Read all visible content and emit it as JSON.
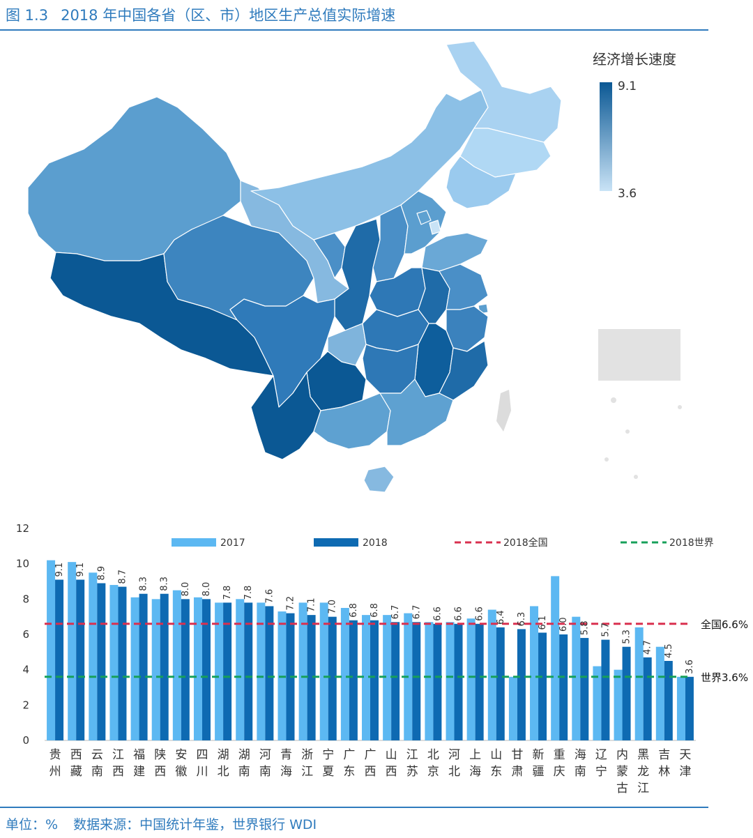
{
  "figure": {
    "number": "图 1.3",
    "title": "2018 年中国各省（区、市）地区生产总值实际增速"
  },
  "footer": {
    "unit": "单位：%",
    "source": "数据来源：中国统计年鉴，世界银行 WDI"
  },
  "map_legend": {
    "title": "经济增长速度",
    "max_label": "9.1",
    "min_label": "3.6",
    "color_high": "#0b5894",
    "color_low": "#c9e3f6"
  },
  "chart_data": {
    "type": "bar",
    "ylim": [
      0,
      12
    ],
    "yticks": [
      0,
      2,
      4,
      6,
      8,
      10,
      12
    ],
    "grid": false,
    "legend_position": "top",
    "categories": [
      [
        "贵",
        "州"
      ],
      [
        "西",
        "藏"
      ],
      [
        "云",
        "南"
      ],
      [
        "江",
        "西"
      ],
      [
        "福",
        "建"
      ],
      [
        "陕",
        "西"
      ],
      [
        "安",
        "徽"
      ],
      [
        "四",
        "川"
      ],
      [
        "湖",
        "北"
      ],
      [
        "湖",
        "南"
      ],
      [
        "河",
        "南"
      ],
      [
        "青",
        "海"
      ],
      [
        "浙",
        "江"
      ],
      [
        "宁",
        "夏"
      ],
      [
        "广",
        "东"
      ],
      [
        "广",
        "西"
      ],
      [
        "山",
        "西"
      ],
      [
        "江",
        "苏"
      ],
      [
        "北",
        "京"
      ],
      [
        "河",
        "北"
      ],
      [
        "上",
        "海"
      ],
      [
        "山",
        "东"
      ],
      [
        "甘",
        "肃"
      ],
      [
        "新",
        "疆"
      ],
      [
        "重",
        "庆"
      ],
      [
        "海",
        "南"
      ],
      [
        "辽",
        "宁"
      ],
      [
        "内",
        "蒙",
        "古"
      ],
      [
        "黑",
        "龙",
        "江"
      ],
      [
        "吉",
        "林"
      ],
      [
        "天",
        "津"
      ]
    ],
    "series": [
      {
        "name": "2017",
        "color": "#5cb8f2",
        "values": [
          10.2,
          10.1,
          9.5,
          8.8,
          8.1,
          8.0,
          8.5,
          8.1,
          7.8,
          8.0,
          7.8,
          7.3,
          7.8,
          7.8,
          7.5,
          7.1,
          7.1,
          7.2,
          6.7,
          6.7,
          6.9,
          7.4,
          3.6,
          7.6,
          9.3,
          7.0,
          4.2,
          4.0,
          6.4,
          5.3,
          3.6
        ]
      },
      {
        "name": "2018",
        "color": "#0e6ab2",
        "values": [
          9.1,
          9.1,
          8.9,
          8.7,
          8.3,
          8.3,
          8.0,
          8.0,
          7.8,
          7.8,
          7.6,
          7.2,
          7.1,
          7.0,
          6.8,
          6.8,
          6.7,
          6.7,
          6.6,
          6.6,
          6.6,
          6.4,
          6.3,
          6.1,
          6.0,
          5.8,
          5.7,
          5.3,
          4.7,
          4.5,
          3.6
        ],
        "data_labels": [
          "9.1",
          "9.1",
          "8.9",
          "8.7",
          "8.3",
          "8.3",
          "8.0",
          "8.0",
          "7.8",
          "7.8",
          "7.6",
          "7.2",
          "7.1",
          "7.0",
          "6.8",
          "6.8",
          "6.7",
          "6.7",
          "6.6",
          "6.6",
          "6.6",
          "6.4",
          "6.3",
          "6.1",
          "6.0",
          "5.8",
          "5.7",
          "5.3",
          "4.7",
          "4.5",
          "3.6"
        ]
      }
    ],
    "reference_lines": [
      {
        "name": "2018全国",
        "value": 6.6,
        "label": "全国6.6%",
        "color": "#d9304f"
      },
      {
        "name": "2018世界",
        "value": 3.6,
        "label": "世界3.6%",
        "color": "#17a05a"
      }
    ]
  }
}
